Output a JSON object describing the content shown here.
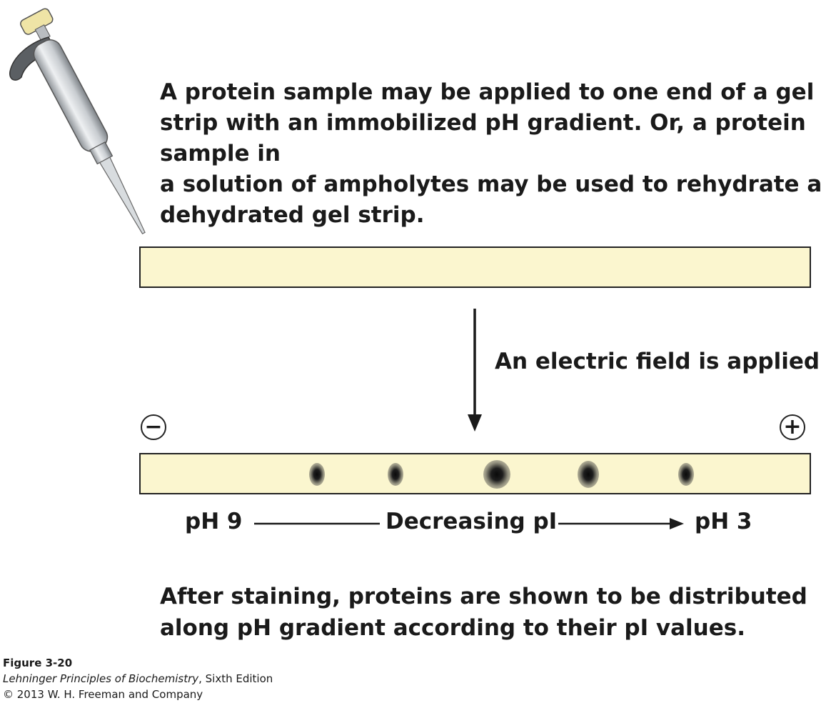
{
  "intro": {
    "lines": [
      "A protein sample may be applied to one end of a gel",
      "strip with an immobilized pH gradient. Or, a protein",
      "sample in",
      "a solution of ampholytes may be used to rehydrate a",
      "dehydrated gel strip."
    ]
  },
  "step_label": "An electric field is applied",
  "electrodes": {
    "negative": "−",
    "positive": "+"
  },
  "gradient": {
    "left_label": "pH 9",
    "center_label": "Decreasing pI",
    "right_label": "pH 3"
  },
  "outro": {
    "lines": [
      "After staining, proteins are shown to be distributed",
      "along pH gradient according to their pI values."
    ]
  },
  "caption": {
    "figure": "Figure 3-20",
    "book_title": "Lehninger Principles of Biochemistry",
    "edition": ", Sixth Edition",
    "copyright": "© 2013 W. H. Freeman and Company"
  },
  "colors": {
    "gel": "#fbf6cf",
    "outline": "#222222",
    "pipette_body": "#c9cdd1",
    "pipette_cap": "#efe4a6"
  }
}
